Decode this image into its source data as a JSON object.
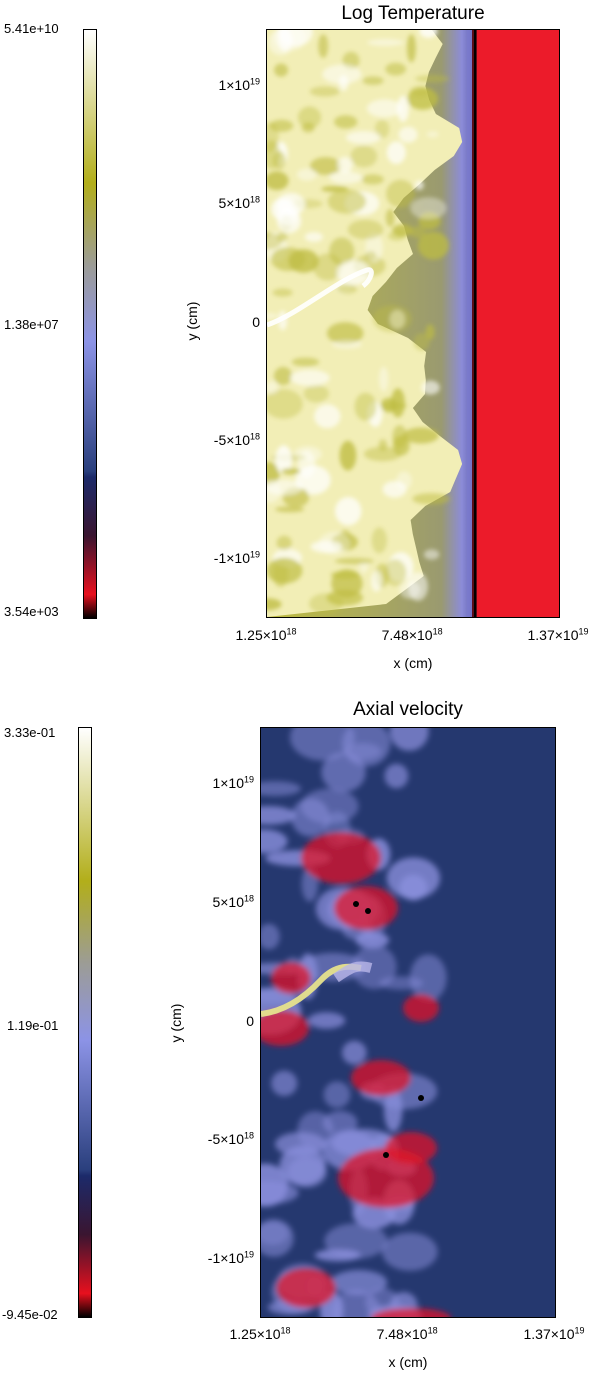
{
  "chart_data": [
    {
      "type": "heatmap",
      "title": "Log Temperature",
      "xlabel": "x (cm)",
      "ylabel": "y (cm)",
      "x_ticks": [
        {
          "value": 1.25e+18,
          "mant": "1.25",
          "exp": "18"
        },
        {
          "value": 7.48e+18,
          "mant": "7.48",
          "exp": "18"
        },
        {
          "value": 1.37e+19,
          "mant": "1.37",
          "exp": "19"
        }
      ],
      "y_ticks": [
        {
          "value": 1e+19,
          "mant": "1",
          "exp": "19",
          "zero": false,
          "neg": false
        },
        {
          "value": 5e+18,
          "mant": "5",
          "exp": "18",
          "zero": false,
          "neg": false
        },
        {
          "value": 0,
          "mant": "0",
          "exp": "",
          "zero": true,
          "neg": false
        },
        {
          "value": -5e+18,
          "mant": "-5",
          "exp": "18",
          "zero": false,
          "neg": true
        },
        {
          "value": -1e+19,
          "mant": "-1",
          "exp": "19",
          "zero": false,
          "neg": true
        }
      ],
      "xlim": [
        1.25e+18,
        1.37e+19
      ],
      "ylim": [
        -1.24e+19,
        1.24e+19
      ],
      "colorbar": {
        "max": "5.41e+10",
        "mid": "1.38e+07",
        "min": "3.54e+03"
      },
      "front_x": 1.05e+19
    },
    {
      "type": "heatmap",
      "title": "Axial velocity",
      "xlabel": "x (cm)",
      "ylabel": "y (cm)",
      "x_ticks": [
        {
          "value": 1.25e+18,
          "mant": "1.25",
          "exp": "18"
        },
        {
          "value": 7.48e+18,
          "mant": "7.48",
          "exp": "18"
        },
        {
          "value": 1.37e+19,
          "mant": "1.37",
          "exp": "19"
        }
      ],
      "y_ticks": [
        {
          "value": 1e+19,
          "mant": "1",
          "exp": "19",
          "zero": false,
          "neg": false
        },
        {
          "value": 5e+18,
          "mant": "5",
          "exp": "18",
          "zero": false,
          "neg": false
        },
        {
          "value": 0,
          "mant": "0",
          "exp": "",
          "zero": true,
          "neg": false
        },
        {
          "value": -5e+18,
          "mant": "-5",
          "exp": "18",
          "zero": false,
          "neg": true
        },
        {
          "value": -1e+19,
          "mant": "-1",
          "exp": "19",
          "zero": false,
          "neg": true
        }
      ],
      "xlim": [
        1.25e+18,
        1.37e+19
      ],
      "ylim": [
        -1.24e+19,
        1.24e+19
      ],
      "colorbar": {
        "max": "3.33e-01",
        "mid": "1.19e-01",
        "min": "-9.45e-02"
      }
    }
  ],
  "colormap": {
    "stops": [
      "#000000",
      "#e8101e",
      "#3a1530",
      "#1c2a6a",
      "#2a3f7d",
      "#8c93e6",
      "#9c9c96",
      "#b2ae1a",
      "#ffffff"
    ],
    "colors": {
      "temperature_cold": "#ec1b2a",
      "temperature_edge": "#000000",
      "temperature_hot": "#f2eeb6",
      "temperature_mid": "#bfbd42",
      "velocity_background": "#25386f",
      "velocity_positive": "#8a8fdc",
      "velocity_negative": "#e0162a",
      "velocity_jet": "#e6e18c"
    }
  }
}
